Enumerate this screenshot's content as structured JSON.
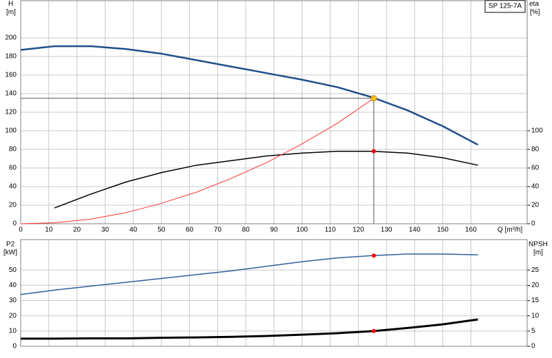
{
  "chart_data": [
    {
      "type": "line",
      "title": "SP 125-7A",
      "ylabel": [
        "H",
        "[m]"
      ],
      "y2label": [
        "eta",
        "[%]"
      ],
      "xlabel": "Q [m³/h]",
      "xlim": [
        0,
        180
      ],
      "xticks": [
        0,
        10,
        20,
        30,
        40,
        50,
        60,
        70,
        80,
        90,
        100,
        110,
        120,
        130,
        140,
        150,
        160
      ],
      "ylim": [
        0,
        240
      ],
      "yticks": [
        0,
        20,
        40,
        60,
        80,
        100,
        120,
        140,
        160,
        180,
        200
      ],
      "y2lim": [
        0,
        240
      ],
      "y2ticks": [
        0,
        20,
        40,
        60,
        80,
        100
      ],
      "grid": true,
      "series": [
        {
          "color": "#1f4e8c",
          "width": 2.5,
          "x": [
            0,
            12,
            25,
            37.5,
            50,
            62.5,
            75,
            87.5,
            100,
            112.5,
            125,
            137.5,
            150,
            162.5
          ],
          "values": [
            187,
            191,
            191,
            188,
            183,
            176,
            169,
            162,
            155,
            147,
            136,
            122,
            105,
            85
          ]
        },
        {
          "color": "#000000",
          "width": 1.5,
          "axis": "y2",
          "x": [
            12,
            25,
            37.5,
            50,
            62.5,
            75,
            87.5,
            100,
            112.5,
            125,
            137.5,
            150,
            162.5
          ],
          "values": [
            17,
            32,
            45,
            55,
            63,
            68,
            73,
            76,
            78,
            78,
            76,
            71,
            63
          ]
        },
        {
          "color": "#ff3030",
          "width": 1,
          "x": [
            0,
            12,
            25,
            37.5,
            50,
            62.5,
            75,
            87.5,
            100,
            112.5,
            125.5
          ],
          "values": [
            0,
            1,
            5,
            12,
            22,
            34,
            49,
            66,
            86,
            108,
            135
          ]
        }
      ],
      "points": [
        {
          "color": "#ff0000",
          "axis": "y2",
          "x": 125.5,
          "value": 78
        }
      ],
      "duty_point": {
        "color": "#ffc020",
        "x": 125.5,
        "value": 135
      }
    },
    {
      "type": "line",
      "ylabel": [
        "P2",
        "[kW]"
      ],
      "y2label": [
        "NPSH",
        "[m]"
      ],
      "ylim": [
        0,
        70
      ],
      "yticks": [
        0,
        10,
        20,
        30,
        40,
        50
      ],
      "y2lim": [
        0,
        35
      ],
      "y2ticks": [
        0,
        5,
        10,
        15,
        20,
        25
      ],
      "grid": true,
      "series": [
        {
          "color": "#2d5f9a",
          "width": 1.5,
          "x": [
            0,
            12.5,
            25,
            37.5,
            50,
            62.5,
            75,
            87.5,
            100,
            112.5,
            125,
            137.5,
            150,
            162.5
          ],
          "values": [
            34,
            37,
            39.5,
            42,
            44.5,
            47,
            49.5,
            52.5,
            55.5,
            58,
            59.5,
            60.5,
            60.5,
            60
          ]
        },
        {
          "color": "#000000",
          "width": 3,
          "axis": "y2",
          "x": [
            0,
            12,
            25,
            37.5,
            50,
            62.5,
            75,
            87.5,
            100,
            112.5,
            125.5,
            137.5,
            150,
            162.5
          ],
          "values": [
            2.5,
            2.5,
            2.6,
            2.6,
            2.8,
            2.9,
            3.1,
            3.4,
            3.8,
            4.3,
            5,
            6,
            7.2,
            8.8
          ]
        }
      ],
      "points": [
        {
          "color": "#ff0000",
          "x": 125.5,
          "value": 59.5
        },
        {
          "color": "#ff0000",
          "axis": "y2",
          "x": 125.5,
          "value": 5
        }
      ]
    }
  ]
}
